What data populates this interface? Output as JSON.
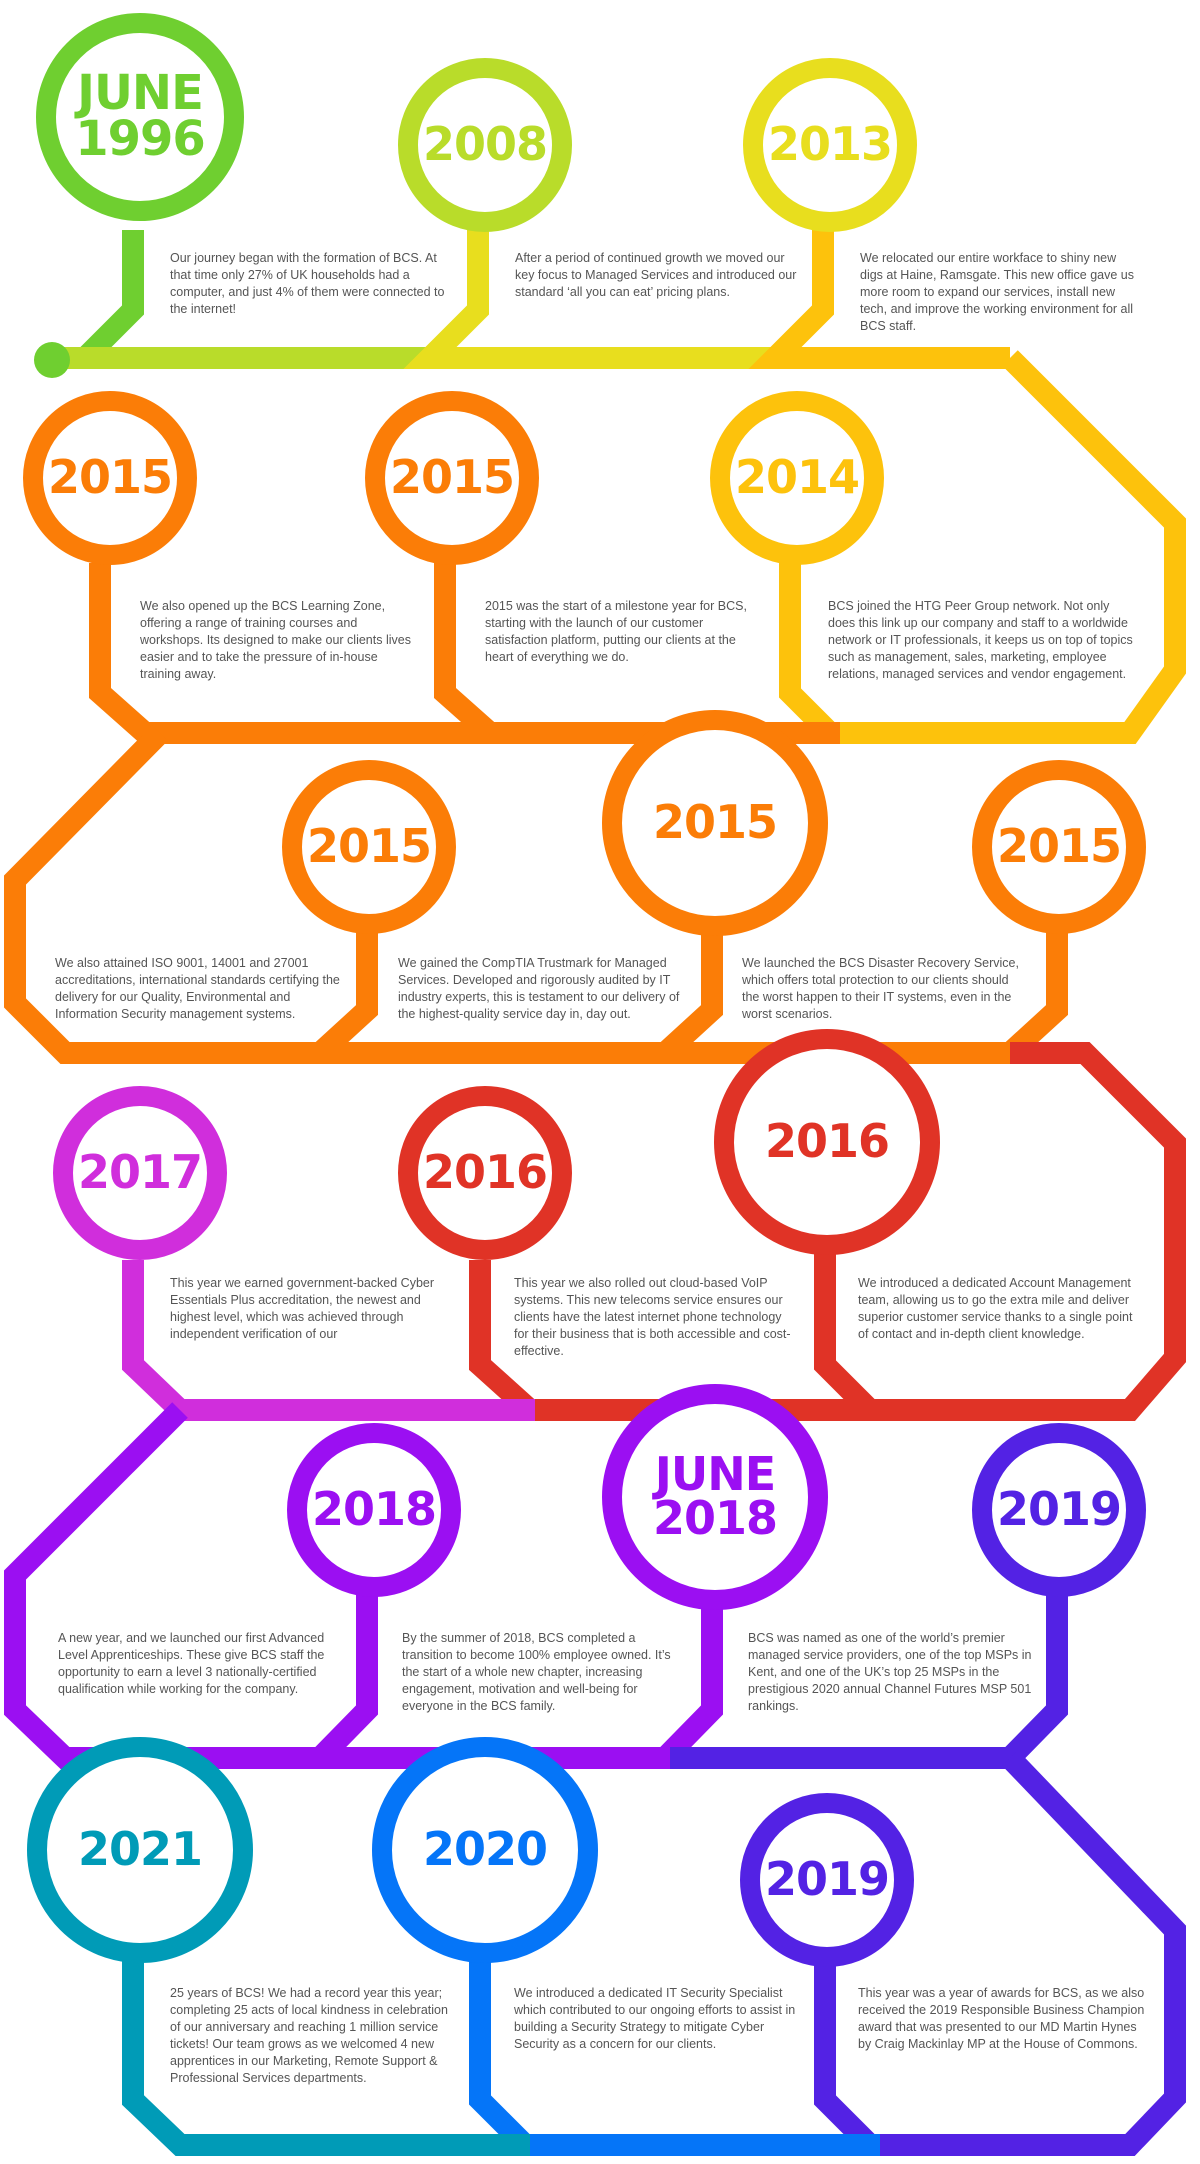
{
  "milestones": [
    {
      "label": "JUNE\n1996",
      "color": "#6fcf30",
      "text": "Our journey began with the formation of BCS. At that time only 27% of UK households had a computer, and just 4% of them were connected to the internet!"
    },
    {
      "label": "2008",
      "color": "#b9dc2a",
      "text": "After a period of continued growth we moved our key focus to Managed Services and introduced our standard ‘all you can eat’ pricing plans."
    },
    {
      "label": "2013",
      "color": "#e8de1e",
      "text": "We relocated our entire workface to shiny new digs at Haine, Ramsgate. This new office gave us more room to expand our services, install new tech, and improve the working environment for all BCS staff."
    },
    {
      "label": "2014",
      "color": "#fdc20c",
      "text": "BCS joined the HTG Peer Group network. Not only does this link up our company and staff to a worldwide network or IT professionals, it keeps us on top of topics such as management, sales, marketing, employee relations, managed services and vendor engagement."
    },
    {
      "label": "2015",
      "color": "#fb7d07",
      "text": "2015 was the start of a milestone year for BCS, starting with the launch of our customer satisfaction platform, putting our clients at the heart of everything we do."
    },
    {
      "label": "2015",
      "color": "#fb7d07",
      "text": "We also opened up the BCS Learning Zone, offering a range of training courses and workshops. Its designed to make our clients lives easier and to take the pressure of in-house training away."
    },
    {
      "label": "2015",
      "color": "#fb7d07",
      "text": "We also attained ISO 9001, 14001 and 27001 accreditations, international standards certifying the delivery for our Quality, Environmental and Information Security management systems."
    },
    {
      "label": "2015",
      "color": "#fb7d07",
      "text": "We gained the CompTIA Trustmark for Managed Services. Developed and rigorously audited by IT industry experts, this is testament to our delivery of the highest-quality service day in, day out."
    },
    {
      "label": "2015",
      "color": "#fb7d07",
      "text": "We launched the BCS Disaster Recovery Service, which offers total protection to our clients should the worst happen to their IT systems, even in the worst scenarios."
    },
    {
      "label": "2016",
      "color": "#e03326",
      "text": "We introduced a dedicated Account Management team, allowing us to go the extra mile and deliver superior customer service thanks to a single point of contact and in-depth client knowledge."
    },
    {
      "label": "2016",
      "color": "#e03326",
      "text": "This year we also rolled out cloud-based VoIP systems. This new telecoms service ensures our clients have the latest internet phone technology for their business that is both accessible and cost-effective."
    },
    {
      "label": "2017",
      "color": "#d02edc",
      "text": "This year we earned government-backed Cyber Essentials Plus accreditation, the newest and highest level, which was achieved through independent verification of our"
    },
    {
      "label": "2018",
      "color": "#9b0ff2",
      "text": "A new year, and we launched our first Advanced Level Apprenticeships. These give BCS staff the opportunity to earn a level 3 nationally-certified qualification while working for the company."
    },
    {
      "label": "JUNE\n2018",
      "color": "#9b0ff2",
      "text": "By the summer of 2018, BCS completed a transition to become 100% employee owned. It’s the start of a whole new chapter, increasing engagement, motivation and well-being for everyone in the BCS family."
    },
    {
      "label": "2019",
      "color": "#5322e4",
      "text": "BCS was named as one of the world’s premier managed service providers, one of the top MSPs in Kent, and one of the UK’s top 25 MSPs in the prestigious 2020 annual Channel Futures MSP 501 rankings."
    },
    {
      "label": "2019",
      "color": "#5322e4",
      "text": "This year was a year of awards for BCS, as we also received the 2019 Responsible Business Champion award that was presented to our MD Martin Hynes by Craig Mackinlay MP at the House of Commons."
    },
    {
      "label": "2020",
      "color": "#0575f8",
      "text": "We introduced a dedicated IT Security Specialist which contributed to our ongoing efforts to assist in building a Security Strategy to mitigate Cyber Security as a concern for our clients."
    },
    {
      "label": "2021",
      "color": "#009bb7",
      "text": "25 years of BCS! We had a record year this year; completing 25 acts of local kindness in celebration of our anniversary and reaching 1 million service tickets! Our team grows as we welcomed 4 new apprentices in our Marketing, Remote Support & Professional Services departments."
    }
  ]
}
